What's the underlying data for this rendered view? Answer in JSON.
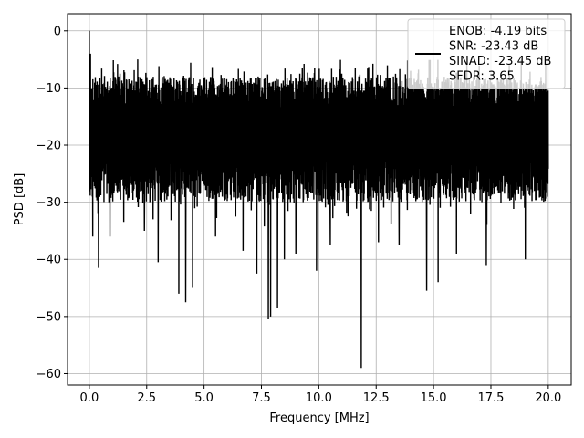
{
  "chart_data": {
    "type": "line",
    "title": "",
    "xlabel": "Frequency [MHz]",
    "ylabel": "PSD [dB]",
    "xlim": [
      -0.95,
      21.0
    ],
    "ylim": [
      -62.0,
      3.0
    ],
    "xticks": [
      0.0,
      2.5,
      5.0,
      7.5,
      10.0,
      12.5,
      15.0,
      17.5,
      20.0
    ],
    "xtick_labels": [
      "0.0",
      "2.5",
      "5.0",
      "7.5",
      "10.0",
      "12.5",
      "15.0",
      "17.5",
      "20.0"
    ],
    "yticks": [
      0,
      -10,
      -20,
      -30,
      -40,
      -50,
      -60
    ],
    "ytick_labels": [
      "0",
      "−10",
      "−20",
      "−30",
      "−40",
      "−50",
      "−60"
    ],
    "grid": true,
    "legend_position": "top-right",
    "series": [
      {
        "name": "ENOB: -4.19 bits\nSNR: -23.43 dB\nSINAD: -23.45 dB\nSFDR: 3.65",
        "color": "#000000",
        "x_range": [
          0.0,
          20.0
        ],
        "typical_band": [
          -30,
          -8
        ],
        "peaks": [
          {
            "x": 0.0,
            "y": 0
          },
          {
            "x": 0.05,
            "y": -4
          },
          {
            "x": 18.3,
            "y": -6
          },
          {
            "x": 14.0,
            "y": -7
          },
          {
            "x": 11.0,
            "y": -7.5
          }
        ],
        "dips": [
          {
            "x": 0.15,
            "y": -36
          },
          {
            "x": 0.4,
            "y": -41.5
          },
          {
            "x": 0.9,
            "y": -36
          },
          {
            "x": 2.4,
            "y": -35
          },
          {
            "x": 3.0,
            "y": -40.5
          },
          {
            "x": 3.9,
            "y": -46
          },
          {
            "x": 4.2,
            "y": -47.5
          },
          {
            "x": 4.5,
            "y": -45
          },
          {
            "x": 5.5,
            "y": -36
          },
          {
            "x": 6.7,
            "y": -38.5
          },
          {
            "x": 7.3,
            "y": -42.5
          },
          {
            "x": 7.8,
            "y": -50.5
          },
          {
            "x": 7.9,
            "y": -50
          },
          {
            "x": 8.2,
            "y": -48.5
          },
          {
            "x": 8.5,
            "y": -40
          },
          {
            "x": 9.0,
            "y": -39
          },
          {
            "x": 9.9,
            "y": -42
          },
          {
            "x": 10.5,
            "y": -37.5
          },
          {
            "x": 11.85,
            "y": -59
          },
          {
            "x": 12.6,
            "y": -37
          },
          {
            "x": 13.5,
            "y": -37.5
          },
          {
            "x": 14.7,
            "y": -45.5
          },
          {
            "x": 15.2,
            "y": -44
          },
          {
            "x": 16.0,
            "y": -39
          },
          {
            "x": 17.3,
            "y": -41
          },
          {
            "x": 19.0,
            "y": -40
          }
        ]
      }
    ]
  }
}
